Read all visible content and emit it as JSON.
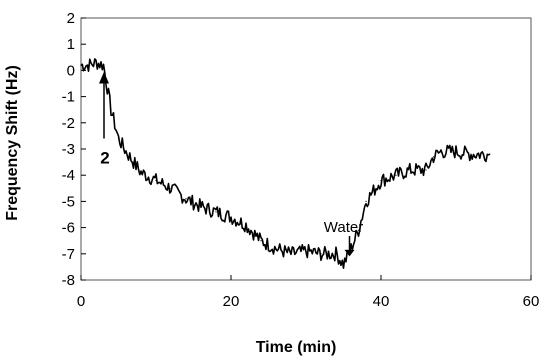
{
  "chart_data": {
    "type": "line",
    "xlabel": "Time (min)",
    "ylabel": "Frequency Shift (Hz)",
    "xlim": [
      0,
      60
    ],
    "ylim": [
      -8,
      2
    ],
    "x_ticks": [
      "0",
      "20",
      "40",
      "60"
    ],
    "y_ticks": [
      "2",
      "1",
      "0",
      "-1",
      "-2",
      "-3",
      "-4",
      "-5",
      "-6",
      "-7",
      "-8"
    ],
    "grid": false,
    "series": [
      {
        "x": [
          0,
          1,
          2,
          3,
          4,
          5,
          6,
          7,
          8,
          10,
          12,
          14,
          16,
          18,
          20,
          22,
          24,
          26,
          28,
          30,
          32,
          34,
          35,
          36,
          37,
          38,
          40,
          42,
          44,
          46,
          47,
          48,
          50,
          52,
          54.5
        ],
        "y": [
          0.2,
          0.2,
          0.3,
          0.2,
          -1.5,
          -2.6,
          -3.1,
          -3.5,
          -3.9,
          -4.2,
          -4.5,
          -4.9,
          -5.2,
          -5.4,
          -5.6,
          -5.9,
          -6.5,
          -6.8,
          -7.0,
          -6.9,
          -7.0,
          -7.0,
          -7.4,
          -6.8,
          -6.1,
          -5.0,
          -4.2,
          -4.0,
          -3.8,
          -3.8,
          -3.3,
          -3.1,
          -3.1,
          -3.2,
          -3.2
        ]
      }
    ],
    "annotations": [
      {
        "text": "2",
        "x": 1.6,
        "y": -2.4
      },
      {
        "text": "Water",
        "x": 35,
        "y": -6.4
      }
    ]
  }
}
